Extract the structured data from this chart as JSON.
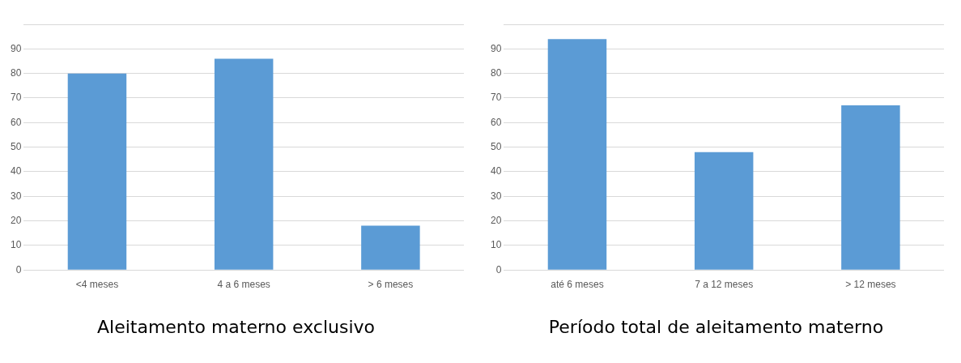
{
  "chart_data": [
    {
      "type": "bar",
      "title": "Aleitamento materno exclusivo",
      "categories": [
        "<4 meses",
        "4 a 6 meses",
        "> 6 meses"
      ],
      "values": [
        80,
        86,
        18
      ],
      "color": "#5b9bd5",
      "ylim": [
        0,
        100
      ],
      "yticks": [
        0,
        10,
        20,
        30,
        40,
        50,
        60,
        70,
        80,
        90,
        {
          "value": 100,
          "label": null
        }
      ],
      "grid": "y"
    },
    {
      "type": "bar",
      "title": "Período total de aleitamento materno",
      "categories": [
        "até 6 meses",
        "7 a 12 meses",
        "> 12 meses"
      ],
      "values": [
        94,
        48,
        67
      ],
      "color": "#5b9bd5",
      "ylim": [
        0,
        100
      ],
      "yticks": [
        0,
        10,
        20,
        30,
        40,
        50,
        60,
        70,
        80,
        90,
        {
          "value": 100,
          "label": null
        }
      ],
      "grid": "y"
    }
  ]
}
